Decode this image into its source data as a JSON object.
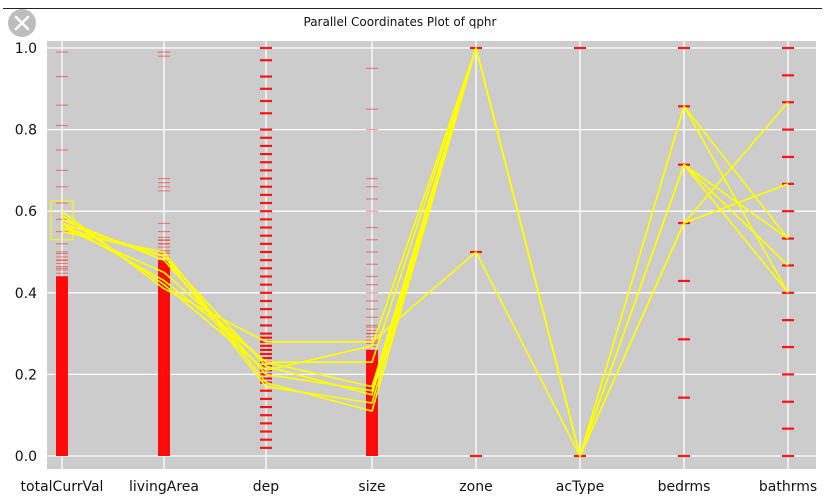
{
  "window": {
    "close_icon": "close-icon"
  },
  "chart_data": {
    "type": "parallel-coordinates",
    "title": "Parallel Coordinates Plot of qphr",
    "axes": [
      "totalCurrVal",
      "livingArea",
      "dep",
      "size",
      "zone",
      "acType",
      "bedrms",
      "bathrms"
    ],
    "ylim": [
      0,
      1
    ],
    "yticks": [
      "0.0",
      "0.2",
      "0.4",
      "0.6",
      "0.8",
      "1.0"
    ],
    "grid": true,
    "background_values": {
      "totalCurrVal": {
        "dense_range": [
          0.0,
          0.44
        ],
        "sparse": [
          0.46,
          0.48,
          0.5,
          0.52,
          0.55,
          0.58,
          0.62,
          0.66,
          0.7,
          0.75,
          0.81,
          0.86,
          0.93,
          0.99
        ]
      },
      "livingArea": {
        "dense_range": [
          0.0,
          0.48
        ],
        "sparse": [
          0.5,
          0.52,
          0.53,
          0.55,
          0.57,
          0.65,
          0.66,
          0.67,
          0.68,
          0.98,
          0.99
        ]
      },
      "dep": {
        "discrete": [
          0.02,
          0.04,
          0.06,
          0.08,
          0.1,
          0.12,
          0.14,
          0.16,
          0.18,
          0.19,
          0.2,
          0.21,
          0.22,
          0.23,
          0.24,
          0.25,
          0.26,
          0.27,
          0.28,
          0.29,
          0.3,
          0.32,
          0.34,
          0.36,
          0.38,
          0.4,
          0.42,
          0.44,
          0.46,
          0.48,
          0.5,
          0.52,
          0.54,
          0.56,
          0.58,
          0.6,
          0.62,
          0.64,
          0.66,
          0.68,
          0.7,
          0.72,
          0.74,
          0.76,
          0.78,
          0.8,
          0.84,
          0.87,
          0.9,
          0.93,
          0.97,
          1.0
        ]
      },
      "size": {
        "dense_range": [
          0.0,
          0.26
        ],
        "sparse": [
          0.28,
          0.3,
          0.32,
          0.34,
          0.36,
          0.38,
          0.4,
          0.42,
          0.44,
          0.47,
          0.5,
          0.53,
          0.56,
          0.6,
          0.63,
          0.66,
          0.68,
          0.8,
          0.85,
          0.95
        ]
      },
      "zone": {
        "discrete": [
          0.0,
          0.5,
          1.0
        ]
      },
      "acType": {
        "discrete": [
          0.0,
          1.0
        ]
      },
      "bedrms": {
        "discrete": [
          0.0,
          0.143,
          0.286,
          0.429,
          0.571,
          0.714,
          0.857,
          1.0
        ]
      },
      "bathrms": {
        "discrete": [
          0.0,
          0.067,
          0.133,
          0.2,
          0.267,
          0.333,
          0.4,
          0.467,
          0.533,
          0.6,
          0.667,
          0.733,
          0.8,
          0.867,
          0.933,
          1.0
        ]
      }
    },
    "selection_box": {
      "axis": "totalCurrVal",
      "range": [
        0.53,
        0.625
      ]
    },
    "highlighted": [
      [
        0.55,
        0.5,
        0.18,
        0.11,
        1.0,
        0.0,
        0.714,
        0.533
      ],
      [
        0.56,
        0.49,
        0.17,
        0.13,
        1.0,
        0.0,
        0.714,
        0.4
      ],
      [
        0.57,
        0.49,
        0.22,
        0.15,
        1.0,
        0.0,
        0.857,
        0.533
      ],
      [
        0.58,
        0.48,
        0.2,
        0.16,
        1.0,
        0.0,
        0.571,
        0.667
      ],
      [
        0.56,
        0.45,
        0.23,
        0.17,
        1.0,
        0.0,
        0.714,
        0.467
      ],
      [
        0.57,
        0.43,
        0.23,
        0.23,
        1.0,
        0.0,
        0.571,
        0.867
      ],
      [
        0.59,
        0.42,
        0.21,
        0.27,
        1.0,
        0.0,
        0.857,
        0.4
      ],
      [
        0.6,
        0.41,
        0.28,
        0.28,
        0.5,
        0.0,
        0.571,
        0.667
      ]
    ],
    "colors": {
      "plot_background": "#cccccc",
      "grid": "#ffffff",
      "background_lines": "#ff0000",
      "highlight": "#ffff00",
      "selection_box": "#ffff00"
    }
  }
}
